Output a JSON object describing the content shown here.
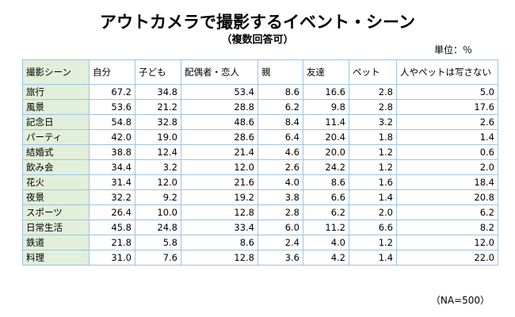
{
  "header": {
    "title": "アウトカメラで撮影するイベント・シーン",
    "subtitle": "（複数回答可）",
    "unit": "単位：％"
  },
  "table": {
    "columns": [
      "撮影シーン",
      "自分",
      "子ども",
      "配偶者・恋人",
      "親",
      "友達",
      "ペット",
      "人やペットは写さない"
    ],
    "rows": [
      [
        "旅行",
        "67.2",
        "34.8",
        "53.4",
        "8.6",
        "16.6",
        "2.8",
        "5.0"
      ],
      [
        "風景",
        "53.6",
        "21.2",
        "28.8",
        "6.2",
        "9.8",
        "2.8",
        "17.6"
      ],
      [
        "記念日",
        "54.8",
        "32.8",
        "48.6",
        "8.4",
        "11.4",
        "3.2",
        "2.6"
      ],
      [
        "パーティ",
        "42.0",
        "19.0",
        "28.6",
        "6.4",
        "20.4",
        "1.8",
        "1.4"
      ],
      [
        "結婚式",
        "38.8",
        "12.4",
        "21.4",
        "4.6",
        "20.0",
        "1.2",
        "0.6"
      ],
      [
        "飲み会",
        "34.4",
        "3.2",
        "12.0",
        "2.6",
        "24.2",
        "1.2",
        "2.0"
      ],
      [
        "花火",
        "31.4",
        "12.0",
        "21.6",
        "4.0",
        "8.6",
        "1.6",
        "18.4"
      ],
      [
        "夜景",
        "32.2",
        "9.2",
        "19.2",
        "3.8",
        "6.6",
        "1.4",
        "20.8"
      ],
      [
        "スポーツ",
        "26.4",
        "10.0",
        "12.8",
        "2.8",
        "6.2",
        "2.0",
        "6.2"
      ],
      [
        "日常生活",
        "45.8",
        "24.8",
        "33.4",
        "6.0",
        "11.2",
        "6.6",
        "8.2"
      ],
      [
        "鉄道",
        "21.8",
        "5.8",
        "8.6",
        "2.4",
        "4.0",
        "1.2",
        "12.0"
      ],
      [
        "料理",
        "31.0",
        "7.6",
        "12.8",
        "3.6",
        "4.2",
        "1.4",
        "22.0"
      ]
    ]
  },
  "footer": {
    "note": "（NA=500）"
  }
}
